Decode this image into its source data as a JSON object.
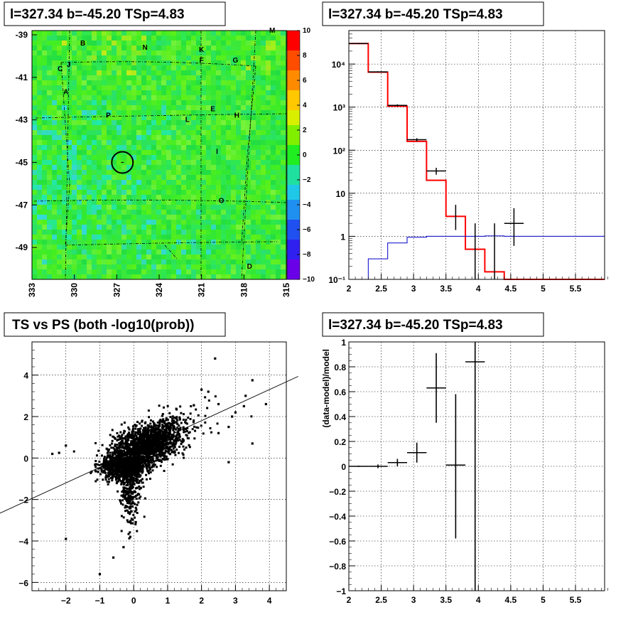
{
  "panels": {
    "skymap": {
      "title": "l=327.34 b=-45.20 TSp=4.83"
    },
    "spectrum": {
      "title": "l=327.34 b=-45.20 TSp=4.83"
    },
    "scatter": {
      "title": "TS vs PS (both -log10(prob))"
    },
    "residual": {
      "title": "l=327.34 b=-45.20 TSp=4.83"
    }
  },
  "colors": {
    "data": "#000000",
    "model_red": "#ff0000",
    "model_blue": "#0000cc",
    "map_green": "#33e833"
  },
  "chart_data": [
    {
      "type": "heatmap",
      "title": "l=327.34 b=-45.20 TSp=4.83",
      "x_ticks": [
        "333",
        "330",
        "327",
        "324",
        "321",
        "318",
        "315"
      ],
      "y_ticks": [
        "-39",
        "-41",
        "-43",
        "-45",
        "-47",
        "-49"
      ],
      "xlim": [
        333,
        315
      ],
      "ylim": [
        -50.5,
        -38.8
      ],
      "colorbar_ticks": [
        "10",
        "8",
        "6",
        "4",
        "2",
        "0",
        "−2",
        "−4",
        "−6",
        "−8",
        "−10"
      ],
      "colorbar_range": [
        -10,
        10
      ],
      "marker": {
        "l": 326.6,
        "b": -45.0
      },
      "source_labels": [
        {
          "text": "B",
          "l": 329.4,
          "b": -39.5
        },
        {
          "text": "N",
          "l": 325.0,
          "b": -39.7
        },
        {
          "text": "K",
          "l": 321.0,
          "b": -39.8
        },
        {
          "text": "M",
          "l": 316.0,
          "b": -38.9
        },
        {
          "text": "C",
          "l": 331.0,
          "b": -40.7
        },
        {
          "text": "J",
          "l": 330.4,
          "b": -40.5
        },
        {
          "text": "F",
          "l": 321.0,
          "b": -40.3
        },
        {
          "text": "G",
          "l": 318.6,
          "b": -40.3
        },
        {
          "text": "A",
          "l": 330.6,
          "b": -41.8
        },
        {
          "text": "E",
          "l": 320.2,
          "b": -42.6
        },
        {
          "text": "H",
          "l": 318.5,
          "b": -42.9
        },
        {
          "text": "P",
          "l": 327.6,
          "b": -42.9
        },
        {
          "text": "L",
          "l": 322.0,
          "b": -43.1
        },
        {
          "text": "I",
          "l": 319.9,
          "b": -44.6
        },
        {
          "text": "O",
          "l": 319.6,
          "b": -46.9
        },
        {
          "text": "D",
          "l": 317.6,
          "b": -50.0
        }
      ]
    },
    {
      "type": "line",
      "title": "l=327.34 b=-45.20 TSp=4.83",
      "xlabel": "",
      "ylabel": "",
      "xlim": [
        2,
        5.95
      ],
      "ylim": [
        0.1,
        60000
      ],
      "yscale": "log",
      "x_ticks": [
        "2",
        "2.5",
        "3",
        "3.5",
        "4",
        "4.5",
        "5",
        "5.5"
      ],
      "y_ticks": [
        "10⁻¹",
        "1",
        "10",
        "10²",
        "10³",
        "10⁴"
      ],
      "series": [
        {
          "name": "",
          "kind": "step",
          "color": "#ff0000",
          "edges": [
            2.0,
            2.3,
            2.6,
            2.9,
            3.2,
            3.5,
            3.8,
            4.1,
            4.4,
            5.95
          ],
          "values": [
            30000,
            6500,
            1050,
            160,
            20,
            2.9,
            0.5,
            0.15,
            0.1
          ]
        },
        {
          "name": "",
          "kind": "step",
          "color": "#0000cc",
          "edges": [
            2.0,
            2.3,
            2.6,
            2.9,
            3.2,
            3.5,
            3.8,
            4.1,
            4.4,
            5.95
          ],
          "values": [
            0.1,
            0.3,
            0.7,
            0.95,
            1.0,
            1.0,
            1.0,
            1.02,
            1.0
          ]
        },
        {
          "name": "",
          "kind": "errorbars",
          "color": "#000000",
          "points": [
            {
              "x": 2.15,
              "y": 30000,
              "xerr": 0.15,
              "lo": 29000,
              "hi": 31000
            },
            {
              "x": 2.45,
              "y": 6600,
              "xerr": 0.15,
              "lo": 6400,
              "hi": 6800
            },
            {
              "x": 2.75,
              "y": 1100,
              "xerr": 0.15,
              "lo": 1040,
              "hi": 1160
            },
            {
              "x": 3.05,
              "y": 175,
              "xerr": 0.15,
              "lo": 160,
              "hi": 190
            },
            {
              "x": 3.35,
              "y": 33,
              "xerr": 0.15,
              "lo": 27,
              "hi": 39
            },
            {
              "x": 3.65,
              "y": 3.3,
              "xerr": 0.0,
              "lo": 1.4,
              "hi": 5.4
            },
            {
              "x": 3.95,
              "y": 0.9,
              "xerr": 0.0,
              "lo": 0.1,
              "hi": 2.0
            },
            {
              "x": 4.25,
              "y": 0.95,
              "xerr": 0.0,
              "lo": 0.1,
              "hi": 2.0
            },
            {
              "x": 4.55,
              "y": 2.0,
              "xerr": 0.15,
              "lo": 0.6,
              "hi": 4.5
            }
          ]
        }
      ]
    },
    {
      "type": "scatter",
      "title": "TS vs PS (both -log10(prob))",
      "xlabel": "",
      "ylabel": "",
      "xlim": [
        -3.0,
        4.5
      ],
      "ylim": [
        -6.4,
        5.6
      ],
      "x_ticks": [
        "−2",
        "−1",
        "0",
        "1",
        "2",
        "3",
        "4"
      ],
      "y_ticks": [
        "−6",
        "−4",
        "−2",
        "0",
        "2",
        "4"
      ],
      "fit_line": {
        "slope": 0.75,
        "intercept": 0.3
      },
      "outliers": [
        [
          2.4,
          4.8
        ],
        [
          2.0,
          3.3
        ],
        [
          2.2,
          3.2
        ],
        [
          3.5,
          3.75
        ],
        [
          3.9,
          2.6
        ],
        [
          3.3,
          3.0
        ],
        [
          2.5,
          2.6
        ],
        [
          2.9,
          2.0
        ],
        [
          3.0,
          2.2
        ],
        [
          3.5,
          0.7
        ],
        [
          2.5,
          1.2
        ],
        [
          2.8,
          1.5
        ],
        [
          2.8,
          -0.2
        ],
        [
          -2.0,
          -3.9
        ],
        [
          -1.0,
          -5.6
        ],
        [
          -0.6,
          -4.8
        ],
        [
          -2.4,
          0.2
        ],
        [
          -2.0,
          0.6
        ],
        [
          -0.3,
          -4.3
        ],
        [
          -0.1,
          -3.8
        ],
        [
          3.25,
          2.5
        ],
        [
          -2.2,
          0.25
        ]
      ]
    },
    {
      "type": "scatter",
      "title": "l=327.34 b=-45.20 TSp=4.83",
      "xlabel": "",
      "ylabel": "(data-model)/model",
      "xlim": [
        2,
        5.95
      ],
      "ylim": [
        -1,
        1
      ],
      "x_ticks": [
        "2",
        "2.5",
        "3",
        "3.5",
        "4",
        "4.5",
        "5",
        "5.5"
      ],
      "y_ticks": [
        "−1",
        "−0.8",
        "−0.6",
        "−0.4",
        "−0.2",
        "0",
        "0.2",
        "0.4",
        "0.6",
        "0.8",
        "1"
      ],
      "points": [
        {
          "x": 2.15,
          "y": 0.0,
          "xerr": 0.15,
          "lo": -0.005,
          "hi": 0.005
        },
        {
          "x": 2.45,
          "y": 0.0,
          "xerr": 0.15,
          "lo": -0.015,
          "hi": 0.015
        },
        {
          "x": 2.75,
          "y": 0.03,
          "xerr": 0.15,
          "lo": 0.0,
          "hi": 0.06
        },
        {
          "x": 3.05,
          "y": 0.11,
          "xerr": 0.15,
          "lo": 0.03,
          "hi": 0.19
        },
        {
          "x": 3.35,
          "y": 0.63,
          "xerr": 0.15,
          "lo": 0.35,
          "hi": 0.91
        },
        {
          "x": 3.65,
          "y": 0.01,
          "xerr": 0.15,
          "lo": -0.58,
          "hi": 0.58
        },
        {
          "x": 3.95,
          "y": 0.84,
          "xerr": 0.15,
          "lo": -1.0,
          "hi": 1.0
        }
      ]
    }
  ]
}
